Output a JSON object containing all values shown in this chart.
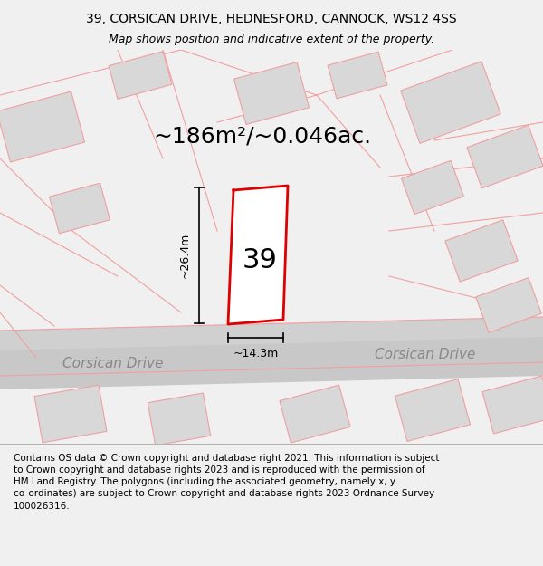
{
  "title_line1": "39, CORSICAN DRIVE, HEDNESFORD, CANNOCK, WS12 4SS",
  "title_line2": "Map shows position and indicative extent of the property.",
  "area_label": "~186m²/~0.046ac.",
  "plot_number": "39",
  "dim_width": "~14.3m",
  "dim_height": "~26.4m",
  "road_label_left": "Corsican Drive",
  "road_label_right": "Corsican Drive",
  "footer_lines": [
    "Contains OS data © Crown copyright and database right 2021. This information is subject",
    "to Crown copyright and database rights 2023 and is reproduced with the permission of",
    "HM Land Registry. The polygons (including the associated geometry, namely x, y",
    "co-ordinates) are subject to Crown copyright and database rights 2023 Ordnance Survey",
    "100026316."
  ],
  "bg_color": "#f0f0f0",
  "map_bg": "#ffffff",
  "plot_fill": "#ffffff",
  "plot_edge": "#dd0000",
  "road_fill": "#d0d0d0",
  "building_fill": "#d4d4d4",
  "pink_line": "#f0a0a0",
  "title_fontsize": 10,
  "subtitle_fontsize": 9,
  "area_fontsize": 18,
  "plot_num_fontsize": 22,
  "footer_fontsize": 7.5,
  "road_label_fontsize": 11,
  "dim_fontsize": 9
}
